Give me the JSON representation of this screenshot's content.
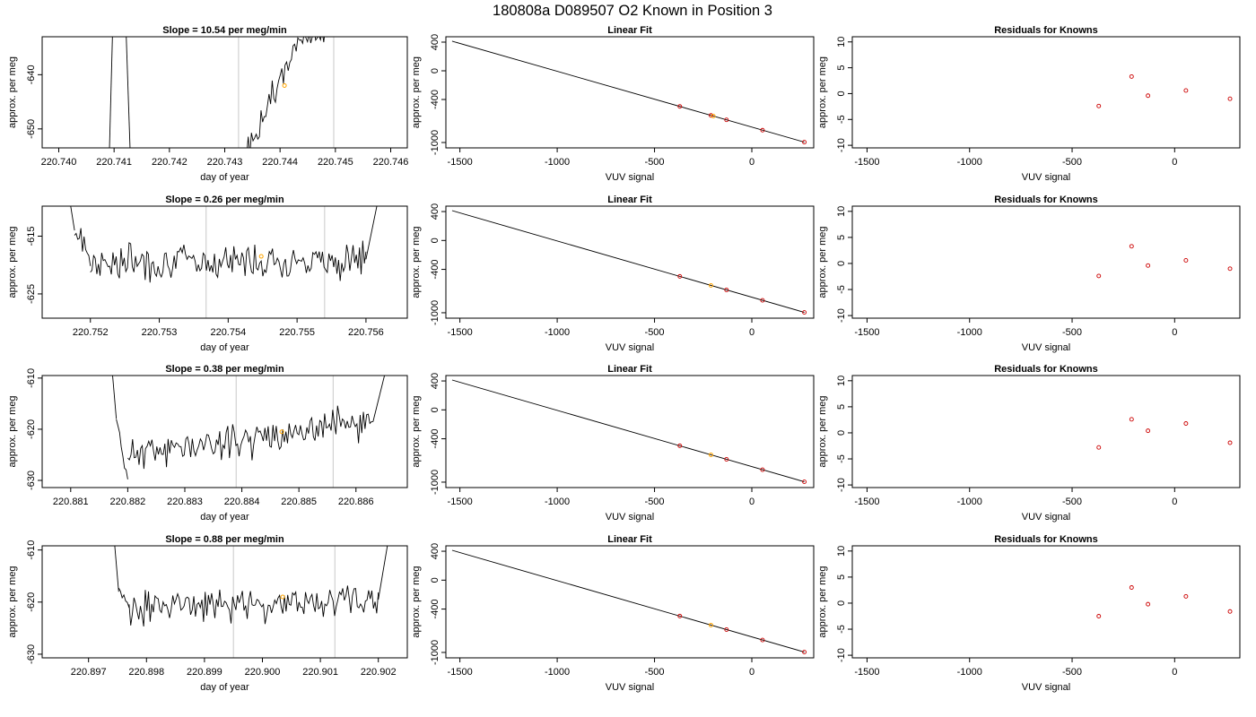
{
  "page_title": "180808a      D089507    O2 Known in Position  3",
  "chart_data": [
    {
      "type": "line",
      "panel": "time-series-1",
      "title": "Slope =  10.54  per meg/min",
      "xlabel": "day of year",
      "ylabel": "approx. per meg",
      "xlim": [
        220.7397,
        220.7463
      ],
      "ylim": [
        -653.5,
        -633.0
      ],
      "xticks": [
        220.74,
        220.741,
        220.742,
        220.743,
        220.744,
        220.745,
        220.746
      ],
      "xtick_labels": [
        "220.740",
        "220.741",
        "220.742",
        "220.743",
        "220.744",
        "220.745",
        "220.746"
      ],
      "yticks": [
        -640,
        -650
      ],
      "ytick_labels": [
        "-640",
        "-650"
      ],
      "vlines": [
        220.74325,
        220.74497
      ],
      "highlight_point": [
        220.74408,
        -642.0
      ],
      "trace": {
        "segments": [
          {
            "x0": 220.7409,
            "x1": 220.74097,
            "y0": -660.0,
            "y1": -633.0,
            "noise": 0,
            "seed": 1
          },
          {
            "x0": 220.74122,
            "x1": 220.74131,
            "y0": -633.0,
            "y1": -660.0,
            "noise": 0,
            "seed": 2
          },
          {
            "x0": 220.74328,
            "x1": 220.74435,
            "y0": -657.0,
            "y1": -633.5,
            "noise": 1.2,
            "seed": 3
          },
          {
            "x0": 220.74435,
            "x1": 220.7452,
            "y0": -633.5,
            "y1": -631.0,
            "noise": 0.8,
            "seed": 4
          }
        ]
      }
    },
    {
      "type": "line",
      "panel": "linear-fit-1",
      "title": "Linear Fit",
      "xlabel": "VUV signal",
      "ylabel": "approx. per meg",
      "xlim": [
        -1572,
        318
      ],
      "ylim": [
        -1075,
        475
      ],
      "xticks": [
        -1500,
        -1000,
        -500,
        0
      ],
      "xtick_labels": [
        "-1500",
        "-1000",
        "-500",
        "0"
      ],
      "yticks": [
        400,
        0,
        -400,
        -1000
      ],
      "ytick_labels": [
        "400",
        "0",
        "-400",
        "-1000"
      ],
      "line": {
        "x": [
          -1540,
          270
        ],
        "y": [
          413,
          -995
        ]
      },
      "points": {
        "x": [
          -370,
          -210,
          -130,
          55,
          270
        ],
        "y": [
          -497,
          -622,
          -684,
          -828,
          -995
        ],
        "colors": [
          "#cc0000",
          "#cc0000",
          "#cc0000",
          "#cc0000",
          "#cc0000"
        ]
      },
      "highlight_point": [
        -198,
        -631
      ]
    },
    {
      "type": "scatter",
      "panel": "residuals-1",
      "title": "Residuals for Knowns",
      "xlabel": "VUV signal",
      "ylabel": "approx. per meg",
      "xlim": [
        -1572,
        318
      ],
      "ylim": [
        -10.5,
        11.0
      ],
      "xticks": [
        -1500,
        -1000,
        -500,
        0
      ],
      "xtick_labels": [
        "-1500",
        "-1000",
        "-500",
        "0"
      ],
      "yticks": [
        10,
        5,
        0,
        -5,
        -10
      ],
      "ytick_labels": [
        "10",
        "5",
        "0",
        "-5",
        "-10"
      ],
      "points": {
        "x": [
          -370,
          -210,
          -130,
          55,
          270
        ],
        "y": [
          -2.4,
          3.3,
          -0.4,
          0.6,
          -1.0
        ],
        "colors": [
          "#cc0000",
          "#cc0000",
          "#cc0000",
          "#cc0000",
          "#cc0000"
        ]
      }
    },
    {
      "type": "line",
      "panel": "time-series-2",
      "title": "Slope =  0.26  per meg/min",
      "xlabel": "day of year",
      "ylabel": "approx. per meg",
      "xlim": [
        220.7513,
        220.7566
      ],
      "ylim": [
        -629.2,
        -609.8
      ],
      "xticks": [
        220.752,
        220.753,
        220.754,
        220.755,
        220.756
      ],
      "xtick_labels": [
        "220.752",
        "220.753",
        "220.754",
        "220.755",
        "220.756"
      ],
      "yticks": [
        -615,
        -625
      ],
      "ytick_labels": [
        "-615",
        "-625"
      ],
      "vlines": [
        220.75368,
        220.7554
      ],
      "highlight_point": [
        220.75448,
        -618.5
      ],
      "trace": {
        "segments": [
          {
            "x0": 220.75165,
            "x1": 220.75177,
            "y0": -605.0,
            "y1": -614.0,
            "noise": 0,
            "seed": 5
          },
          {
            "x0": 220.75177,
            "x1": 220.752,
            "y0": -614.0,
            "y1": -619.0,
            "noise": 1.0,
            "seed": 6
          },
          {
            "x0": 220.752,
            "x1": 220.756,
            "y0": -619.5,
            "y1": -619.0,
            "noise": 1.5,
            "seed": 7
          },
          {
            "x0": 220.756,
            "x1": 220.75624,
            "y0": -619.0,
            "y1": -605.0,
            "noise": 0,
            "seed": 8
          }
        ]
      }
    },
    {
      "type": "line",
      "panel": "linear-fit-2",
      "title": "Linear Fit",
      "xlabel": "VUV signal",
      "ylabel": "approx. per meg",
      "xlim": [
        -1572,
        318
      ],
      "ylim": [
        -1075,
        475
      ],
      "xticks": [
        -1500,
        -1000,
        -500,
        0
      ],
      "xtick_labels": [
        "-1500",
        "-1000",
        "-500",
        "0"
      ],
      "yticks": [
        400,
        0,
        -400,
        -1000
      ],
      "ytick_labels": [
        "400",
        "0",
        "-400",
        "-1000"
      ],
      "line": {
        "x": [
          -1540,
          270
        ],
        "y": [
          413,
          -995
        ]
      },
      "points": {
        "x": [
          -370,
          -130,
          55,
          270
        ],
        "y": [
          -497,
          -684,
          -828,
          -995
        ],
        "colors": [
          "#cc0000",
          "#cc0000",
          "#cc0000",
          "#cc0000"
        ]
      },
      "highlight_point": [
        -210,
        -622
      ]
    },
    {
      "type": "scatter",
      "panel": "residuals-2",
      "title": "Residuals for Knowns",
      "xlabel": "VUV signal",
      "ylabel": "approx. per meg",
      "xlim": [
        -1572,
        318
      ],
      "ylim": [
        -10.5,
        11.0
      ],
      "xticks": [
        -1500,
        -1000,
        -500,
        0
      ],
      "xtick_labels": [
        "-1500",
        "-1000",
        "-500",
        "0"
      ],
      "yticks": [
        10,
        5,
        0,
        -5,
        -10
      ],
      "ytick_labels": [
        "10",
        "5",
        "0",
        "-5",
        "-10"
      ],
      "points": {
        "x": [
          -370,
          -210,
          -130,
          55,
          270
        ],
        "y": [
          -2.4,
          3.3,
          -0.4,
          0.6,
          -1.0
        ],
        "colors": [
          "#cc0000",
          "#cc0000",
          "#cc0000",
          "#cc0000",
          "#cc0000"
        ]
      }
    },
    {
      "type": "line",
      "panel": "time-series-3",
      "title": "Slope =  0.38  per meg/min",
      "xlabel": "day of year",
      "ylabel": "approx. per meg",
      "xlim": [
        220.8805,
        220.8869
      ],
      "ylim": [
        -631.4,
        -609.5
      ],
      "xticks": [
        220.881,
        220.882,
        220.883,
        220.884,
        220.885,
        220.886
      ],
      "xtick_labels": [
        "220.881",
        "220.882",
        "220.883",
        "220.884",
        "220.885",
        "220.886"
      ],
      "yticks": [
        -610,
        -620,
        -630
      ],
      "ytick_labels": [
        "-610",
        "-620",
        "-630"
      ],
      "vlines": [
        220.8839,
        220.8856
      ],
      "highlight_point": [
        220.8847,
        -620.5
      ],
      "trace": {
        "segments": [
          {
            "x0": 220.8817,
            "x1": 220.8818,
            "y0": -605.0,
            "y1": -618.0,
            "noise": 0,
            "seed": 9
          },
          {
            "x0": 220.8818,
            "x1": 220.882,
            "y0": -618.0,
            "y1": -629.5,
            "noise": 1.0,
            "seed": 10
          },
          {
            "x0": 220.882,
            "x1": 220.8863,
            "y0": -625.0,
            "y1": -618.5,
            "noise": 1.6,
            "seed": 11
          },
          {
            "x0": 220.8863,
            "x1": 220.8866,
            "y0": -618.5,
            "y1": -605.0,
            "noise": 0,
            "seed": 12
          }
        ]
      }
    },
    {
      "type": "line",
      "panel": "linear-fit-3",
      "title": "Linear Fit",
      "xlabel": "VUV signal",
      "ylabel": "approx. per meg",
      "xlim": [
        -1572,
        318
      ],
      "ylim": [
        -1075,
        475
      ],
      "xticks": [
        -1500,
        -1000,
        -500,
        0
      ],
      "xtick_labels": [
        "-1500",
        "-1000",
        "-500",
        "0"
      ],
      "yticks": [
        400,
        0,
        -400,
        -1000
      ],
      "ytick_labels": [
        "400",
        "0",
        "-400",
        "-1000"
      ],
      "line": {
        "x": [
          -1540,
          270
        ],
        "y": [
          413,
          -995
        ]
      },
      "points": {
        "x": [
          -370,
          -130,
          55,
          270
        ],
        "y": [
          -497,
          -684,
          -828,
          -995
        ],
        "colors": [
          "#cc0000",
          "#cc0000",
          "#cc0000",
          "#cc0000"
        ]
      },
      "highlight_point": [
        -210,
        -622
      ]
    },
    {
      "type": "scatter",
      "panel": "residuals-3",
      "title": "Residuals for Knowns",
      "xlabel": "VUV signal",
      "ylabel": "approx. per meg",
      "xlim": [
        -1572,
        318
      ],
      "ylim": [
        -10.5,
        11.0
      ],
      "xticks": [
        -1500,
        -1000,
        -500,
        0
      ],
      "xtick_labels": [
        "-1500",
        "-1000",
        "-500",
        "0"
      ],
      "yticks": [
        10,
        5,
        0,
        -5,
        -10
      ],
      "ytick_labels": [
        "10",
        "5",
        "0",
        "-5",
        "-10"
      ],
      "points": {
        "x": [
          -370,
          -210,
          -130,
          55,
          270
        ],
        "y": [
          -2.8,
          2.6,
          0.4,
          1.8,
          -1.9
        ],
        "colors": [
          "#cc0000",
          "#cc0000",
          "#cc0000",
          "#cc0000",
          "#cc0000"
        ]
      }
    },
    {
      "type": "line",
      "panel": "time-series-4",
      "title": "Slope =  0.88  per meg/min",
      "xlabel": "day of year",
      "ylabel": "approx. per meg",
      "xlim": [
        220.8962,
        220.9025
      ],
      "ylim": [
        -630.7,
        -609.2
      ],
      "xticks": [
        220.897,
        220.898,
        220.899,
        220.9,
        220.901,
        220.902
      ],
      "xtick_labels": [
        "220.897",
        "220.898",
        "220.899",
        "220.900",
        "220.901",
        "220.902"
      ],
      "yticks": [
        -610,
        -620,
        -630
      ],
      "ytick_labels": [
        "-610",
        "-620",
        "-630"
      ],
      "vlines": [
        220.8995,
        220.90125
      ],
      "highlight_point": [
        220.90035,
        -619.0
      ],
      "trace": {
        "segments": [
          {
            "x0": 220.89742,
            "x1": 220.89752,
            "y0": -605.0,
            "y1": -618.0,
            "noise": 0,
            "seed": 13
          },
          {
            "x0": 220.89752,
            "x1": 220.8977,
            "y0": -618.0,
            "y1": -621.0,
            "noise": 1.0,
            "seed": 14
          },
          {
            "x0": 220.8977,
            "x1": 220.902,
            "y0": -621.0,
            "y1": -619.5,
            "noise": 1.5,
            "seed": 15
          },
          {
            "x0": 220.902,
            "x1": 220.90222,
            "y0": -619.5,
            "y1": -605.0,
            "noise": 0,
            "seed": 16
          }
        ]
      }
    },
    {
      "type": "line",
      "panel": "linear-fit-4",
      "title": "Linear Fit",
      "xlabel": "VUV signal",
      "ylabel": "approx. per meg",
      "xlim": [
        -1572,
        318
      ],
      "ylim": [
        -1075,
        475
      ],
      "xticks": [
        -1500,
        -1000,
        -500,
        0
      ],
      "xtick_labels": [
        "-1500",
        "-1000",
        "-500",
        "0"
      ],
      "yticks": [
        400,
        0,
        -400,
        -1000
      ],
      "ytick_labels": [
        "400",
        "0",
        "-400",
        "-1000"
      ],
      "line": {
        "x": [
          -1540,
          270
        ],
        "y": [
          413,
          -995
        ]
      },
      "points": {
        "x": [
          -370,
          -130,
          55,
          270
        ],
        "y": [
          -497,
          -684,
          -828,
          -995
        ],
        "colors": [
          "#cc0000",
          "#cc0000",
          "#cc0000",
          "#cc0000"
        ]
      },
      "highlight_point": [
        -210,
        -622
      ]
    },
    {
      "type": "scatter",
      "panel": "residuals-4",
      "title": "Residuals for Knowns",
      "xlabel": "VUV signal",
      "ylabel": "approx. per meg",
      "xlim": [
        -1572,
        318
      ],
      "ylim": [
        -10.5,
        11.0
      ],
      "xticks": [
        -1500,
        -1000,
        -500,
        0
      ],
      "xtick_labels": [
        "-1500",
        "-1000",
        "-500",
        "0"
      ],
      "yticks": [
        10,
        5,
        0,
        -5,
        -10
      ],
      "ytick_labels": [
        "10",
        "5",
        "0",
        "-5",
        "-10"
      ],
      "points": {
        "x": [
          -370,
          -210,
          -130,
          55,
          270
        ],
        "y": [
          -2.5,
          3.0,
          -0.2,
          1.3,
          -1.6
        ],
        "colors": [
          "#cc0000",
          "#cc0000",
          "#cc0000",
          "#cc0000",
          "#cc0000"
        ]
      }
    }
  ],
  "colors": {
    "line": "#000000",
    "point": "#cc0000",
    "highlight": "#ffa500",
    "vline": "#c8c8c8",
    "frame": "#000000"
  }
}
